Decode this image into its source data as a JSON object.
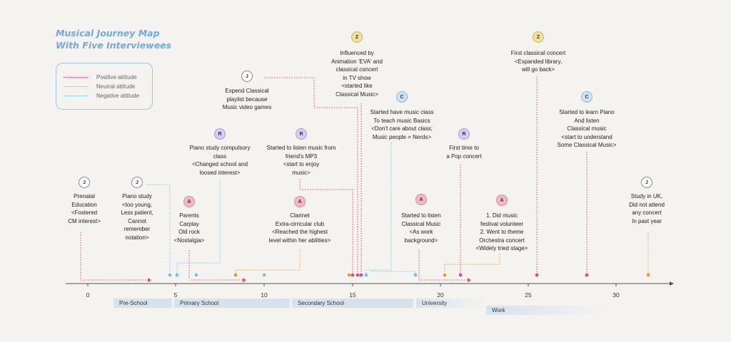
{
  "title_lines": [
    "Musical Journey Map",
    "With Five Interviewees"
  ],
  "legend": {
    "positive": "Positive attitude",
    "neutral": "Neutral attitude",
    "negative": "Negative attitude"
  },
  "colors": {
    "positive": "#e8417f",
    "neutral": "#f0962e",
    "negative": "#74c1e6",
    "axis": "#555555",
    "stage_bar": "#d5e3f1",
    "title": "#6fa9e6"
  },
  "axis": {
    "ticks": [
      "0",
      "5",
      "10",
      "15",
      "20",
      "25",
      "30"
    ]
  },
  "stages": [
    {
      "label": "Pre-School"
    },
    {
      "label": "Primary School"
    },
    {
      "label": "Secondary School"
    },
    {
      "label": "University"
    },
    {
      "label": "Work"
    }
  ],
  "events": [
    {
      "initial": "J",
      "lines": [
        "Prenatal",
        "Education",
        "<Fostered",
        "CM interest>"
      ]
    },
    {
      "initial": "J",
      "lines": [
        "Piano study",
        "<too young,",
        "Less patient,",
        "Cannot",
        "remember",
        "notation>"
      ]
    },
    {
      "initial": "A",
      "lines": [
        "Parents",
        "Carplay",
        "Old rock",
        "<Nostalgia>"
      ]
    },
    {
      "initial": "R",
      "lines": [
        "Piano study compulsory",
        "class",
        "<Changed school and",
        "loosed interest>"
      ]
    },
    {
      "initial": "J",
      "lines": [
        "Expend Classical",
        "playlist because",
        "Music video games"
      ]
    },
    {
      "initial": "R",
      "lines": [
        "Started to listen music from",
        "friend's MP3",
        "<start to enjoy",
        "music>"
      ]
    },
    {
      "initial": "A",
      "lines": [
        "Clarinet",
        "Extra-cirricular club",
        "<Reached the highest",
        "level within her abilities>"
      ]
    },
    {
      "initial": "Z",
      "lines": [
        "Influenced by",
        "Animation 'EVA' and",
        "classical concert",
        "in TV show",
        "<started like",
        "Classical Music>"
      ]
    },
    {
      "initial": "C",
      "lines": [
        "Started have music class",
        "To teach music Basics",
        "<Don't care about class;",
        "Music people = Nerds>"
      ]
    },
    {
      "initial": "A",
      "lines": [
        "Started to listen",
        "Classical Music",
        "<As work",
        "background>"
      ]
    },
    {
      "initial": "R",
      "lines": [
        "First time to",
        "a Pop concert"
      ]
    },
    {
      "initial": "A",
      "lines": [
        "1. Did music",
        "festival volunteer",
        "2. Went to theme",
        "Orchestra concert",
        "<Widely tried stage>"
      ]
    },
    {
      "initial": "Z",
      "lines": [
        "First classical concert",
        "<Expanded library,",
        "will go back>"
      ]
    },
    {
      "initial": "C",
      "lines": [
        "Started to learn Piano",
        "And listen",
        "Classical music",
        "<start to understand",
        "Some Classical Music>"
      ]
    },
    {
      "initial": "J",
      "lines": [
        "Study in UK,",
        "Did not attend",
        "any concert",
        "In past year"
      ]
    }
  ]
}
